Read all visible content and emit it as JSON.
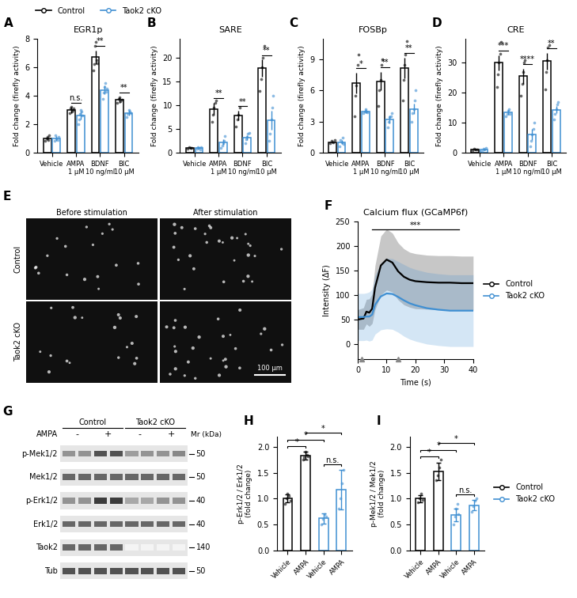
{
  "chart_data": [
    {
      "panel": "A",
      "type": "bar",
      "title": "EGR1p",
      "y_label": "Fold change (firefly activity)",
      "categories": [
        "Vehicle",
        "AMPA\n1 μM",
        "BDNF\n10 ng/ml",
        "BIC\n10 μM"
      ],
      "ylim": [
        0,
        8
      ],
      "yticks": [
        0,
        2,
        4,
        6,
        8
      ],
      "legend": "upper left",
      "series": [
        {
          "name": "Control",
          "color": "#000000",
          "values": [
            1.0,
            3.0,
            6.7,
            3.7
          ],
          "errors": [
            0.1,
            0.2,
            0.5,
            0.2
          ],
          "points": [
            [
              0.8,
              1.0,
              1.1,
              0.9,
              1.2
            ],
            [
              2.8,
              3.1,
              3.2,
              2.9,
              3.0,
              3.1
            ],
            [
              5.8,
              6.2,
              7.5,
              7.8,
              6.5,
              6.3
            ],
            [
              3.5,
              3.8,
              3.9,
              3.6,
              3.7
            ]
          ]
        },
        {
          "name": "Taok2 cKO",
          "color": "#3f8fd2",
          "values": [
            1.0,
            2.6,
            4.4,
            2.8
          ],
          "errors": [
            0.15,
            0.3,
            0.3,
            0.2
          ],
          "points": [
            [
              0.8,
              1.2,
              1.0,
              0.9,
              1.1
            ],
            [
              2.0,
              2.3,
              2.7,
              3.0,
              2.9,
              2.6
            ],
            [
              3.8,
              4.2,
              4.6,
              4.9,
              4.3,
              4.5
            ],
            [
              2.5,
              2.7,
              3.0,
              2.9,
              2.8
            ]
          ]
        }
      ],
      "significance": [
        null,
        "n.s.",
        "**",
        "**"
      ]
    },
    {
      "panel": "B",
      "type": "bar",
      "title": "SARE",
      "y_label": "Fold change (firefly activity)",
      "categories": [
        "Vehicle",
        "AMPA\n1 μM",
        "BDNF\n10 ng/ml",
        "BIC\n10 μM"
      ],
      "ylim": [
        0,
        24
      ],
      "yticks": [
        0,
        5,
        10,
        15,
        20
      ],
      "series": [
        {
          "name": "Control",
          "color": "#000000",
          "values": [
            1.0,
            9.2,
            7.8,
            17.8
          ],
          "errors": [
            0.2,
            1.3,
            1.0,
            1.8
          ],
          "points": [
            [
              0.8,
              1.2,
              1.0,
              0.9
            ],
            [
              6.5,
              8.0,
              9.5,
              10.5,
              11.0
            ],
            [
              5.5,
              7.0,
              8.0,
              9.5
            ],
            [
              13.0,
              15.5,
              18.0,
              20.0,
              22.5
            ]
          ]
        },
        {
          "name": "Taok2 cKO",
          "color": "#3f8fd2",
          "values": [
            1.0,
            2.2,
            3.2,
            6.8
          ],
          "errors": [
            0.2,
            0.6,
            0.5,
            2.0
          ],
          "points": [
            [
              0.8,
              1.2,
              1.0,
              0.7,
              1.1
            ],
            [
              1.0,
              1.5,
              2.0,
              2.5,
              3.5
            ],
            [
              2.0,
              2.8,
              3.3,
              4.0,
              4.2
            ],
            [
              2.5,
              4.0,
              7.0,
              9.5,
              12.0
            ]
          ]
        }
      ],
      "significance": [
        null,
        "**",
        "**",
        "**"
      ]
    },
    {
      "panel": "C",
      "type": "bar",
      "title": "FOSBp",
      "y_label": "Fold change (firefly activity)",
      "categories": [
        "Vehicle",
        "AMPA\n1 μM",
        "BDNF\n10 ng/ml",
        "BIC\n10 μM"
      ],
      "ylim": [
        0,
        11
      ],
      "yticks": [
        0,
        3,
        6,
        9
      ],
      "series": [
        {
          "name": "Control",
          "color": "#000000",
          "values": [
            1.0,
            6.7,
            6.9,
            8.2
          ],
          "errors": [
            0.1,
            1.0,
            0.9,
            1.0
          ],
          "points": [
            [
              0.9,
              1.1,
              1.0,
              1.2
            ],
            [
              3.5,
              5.5,
              6.5,
              8.5,
              9.5
            ],
            [
              4.5,
              6.0,
              7.0,
              8.5,
              9.0
            ],
            [
              5.0,
              7.0,
              8.5,
              9.5,
              10.8
            ]
          ]
        },
        {
          "name": "Taok2 cKO",
          "color": "#3f8fd2",
          "values": [
            1.0,
            4.0,
            3.2,
            4.2
          ],
          "errors": [
            0.2,
            0.2,
            0.4,
            0.5
          ],
          "points": [
            [
              0.6,
              1.2,
              1.0,
              1.4,
              0.8
            ],
            [
              3.8,
              4.0,
              4.2,
              4.0,
              3.9
            ],
            [
              2.4,
              3.0,
              3.4,
              3.5,
              3.8
            ],
            [
              3.0,
              3.8,
              4.2,
              5.0,
              6.0
            ]
          ]
        }
      ],
      "significance": [
        null,
        "*",
        "**",
        "**"
      ]
    },
    {
      "panel": "D",
      "type": "bar",
      "title": "CRE",
      "y_label": "Fold change (firefly activity)",
      "categories": [
        "Vehicle",
        "AMPA\n1 μM",
        "BDNF\n10 ng/ml",
        "BIC\n10 μM"
      ],
      "ylim": [
        0,
        38
      ],
      "yticks": [
        0,
        10,
        20,
        30
      ],
      "series": [
        {
          "name": "Control",
          "color": "#000000",
          "values": [
            1.0,
            30.0,
            25.5,
            30.5
          ],
          "errors": [
            0.2,
            2.5,
            2.5,
            2.8
          ],
          "points": [
            [
              0.8,
              1.2,
              1.0,
              0.9
            ],
            [
              22,
              26,
              30,
              33,
              37
            ],
            [
              19,
              23,
              27,
              30,
              31
            ],
            [
              21,
              27,
              31,
              35,
              36
            ]
          ]
        },
        {
          "name": "Taok2 cKO",
          "color": "#3f8fd2",
          "values": [
            1.0,
            13.5,
            6.0,
            14.3
          ],
          "errors": [
            0.2,
            0.8,
            1.8,
            1.2
          ],
          "points": [
            [
              0.5,
              1.2,
              1.0,
              1.5
            ],
            [
              12,
              13,
              14,
              14.5,
              13
            ],
            [
              2,
              4,
              6,
              8,
              10
            ],
            [
              11,
              13,
              14.5,
              16,
              17
            ]
          ]
        }
      ],
      "significance": [
        null,
        "***",
        "****",
        "**"
      ]
    },
    {
      "panel": "F",
      "type": "line",
      "title": "Calcium flux (GCaMP6f)",
      "x_label": "Time (s)",
      "y_label": "Intensity (ΔF)",
      "xlim": [
        0,
        40
      ],
      "xticks": [
        0,
        10,
        20,
        30,
        40
      ],
      "ylim": [
        -30,
        250
      ],
      "yticks": [
        0,
        50,
        100,
        150,
        200,
        250
      ],
      "legend": "center left",
      "stimulus_times": [
        1.5,
        14
      ],
      "significance": {
        "label": "***",
        "from": 5,
        "to": 35
      },
      "series": [
        {
          "name": "Control",
          "color": "#000000",
          "x": [
            0,
            2,
            3,
            4,
            5,
            6,
            8,
            10,
            12,
            14,
            16,
            18,
            20,
            24,
            28,
            32,
            36,
            40
          ],
          "values": [
            50,
            52,
            66,
            64,
            72,
            115,
            160,
            172,
            166,
            148,
            137,
            131,
            128,
            126,
            125,
            125,
            124,
            124
          ],
          "sd": [
            20,
            22,
            25,
            28,
            30,
            45,
            60,
            62,
            60,
            58,
            57,
            56,
            56,
            55,
            55,
            55,
            55,
            55
          ]
        },
        {
          "name": "Taok2 cKO",
          "color": "#3f8fd2",
          "x": [
            0,
            2,
            3,
            4,
            5,
            6,
            8,
            10,
            12,
            14,
            16,
            18,
            20,
            24,
            28,
            32,
            36,
            40
          ],
          "values": [
            55,
            55,
            56,
            56,
            60,
            80,
            97,
            103,
            102,
            96,
            89,
            83,
            79,
            73,
            70,
            68,
            68,
            68
          ],
          "sd": [
            48,
            48,
            48,
            50,
            52,
            60,
            68,
            72,
            72,
            72,
            73,
            73,
            73,
            73,
            73,
            73,
            73,
            73
          ]
        }
      ]
    },
    {
      "panel": "H",
      "type": "bar",
      "y_label": "p-Erk1/2 / Erk1/2\n(fold change)",
      "categories": [
        "Vehicle",
        "AMPA",
        "Vehicle",
        "AMPA"
      ],
      "ylim": [
        0,
        2.2
      ],
      "yticks": [
        {
          "value": 0,
          "label": "0.0"
        },
        0.5,
        {
          "value": 1,
          "label": "1.0"
        },
        1.5,
        {
          "value": 2,
          "label": "2.0"
        }
      ],
      "series": [
        {
          "name": "Control",
          "color": "#000000",
          "values": [
            1.0,
            1.83,
            null,
            null
          ],
          "errors": [
            0.08,
            0.07,
            null,
            null
          ],
          "points": [
            [
              0.9,
              1.0,
              1.1,
              1.05,
              0.95
            ],
            [
              1.75,
              1.8,
              1.9,
              1.85,
              1.82
            ],
            null,
            null
          ]
        },
        {
          "name": "Taok2 cKO",
          "color": "#3f8fd2",
          "values": [
            null,
            null,
            0.62,
            1.17
          ],
          "errors": [
            null,
            null,
            0.1,
            0.38
          ],
          "points": [
            null,
            null,
            [
              0.5,
              0.6,
              0.7,
              0.65
            ],
            [
              0.8,
              1.0,
              1.3,
              1.55
            ]
          ]
        }
      ],
      "brackets": [
        {
          "from": 0,
          "to": 1,
          "label": "*"
        },
        {
          "from": 0,
          "to": 2,
          "label": "*"
        },
        {
          "from": 1,
          "to": 3,
          "label": "*"
        },
        {
          "from": 2,
          "to": 3,
          "label": "n.s."
        }
      ]
    },
    {
      "panel": "I",
      "type": "bar",
      "y_label": "p-Mek1/2 / Mek1/2\n(fold change)",
      "categories": [
        "Vehicle",
        "AMPA",
        "Vehicle",
        "AMPA"
      ],
      "legend": "center left",
      "ylim": [
        0,
        2.2
      ],
      "yticks": [
        {
          "value": 0,
          "label": "0.0"
        },
        0.5,
        {
          "value": 1,
          "label": "1.0"
        },
        1.5,
        {
          "value": 2,
          "label": "2.0"
        }
      ],
      "series": [
        {
          "name": "Control",
          "color": "#000000",
          "values": [
            1.0,
            1.53,
            null,
            null
          ],
          "errors": [
            0.07,
            0.17,
            null,
            null
          ],
          "points": [
            [
              0.92,
              1.0,
              1.1,
              0.98
            ],
            [
              1.35,
              1.45,
              1.6,
              1.75
            ],
            null,
            null
          ]
        },
        {
          "name": "Taok2 cKO",
          "color": "#3f8fd2",
          "values": [
            null,
            null,
            0.68,
            0.87
          ],
          "errors": [
            null,
            null,
            0.12,
            0.1
          ],
          "points": [
            null,
            null,
            [
              0.5,
              0.65,
              0.8,
              0.9,
              0.7
            ],
            [
              0.75,
              0.85,
              0.95,
              1.0
            ]
          ]
        }
      ],
      "brackets": [
        {
          "from": 0,
          "to": 1,
          "label": "*"
        },
        {
          "from": 0,
          "to": 2,
          "label": "*"
        },
        {
          "from": 1,
          "to": 3,
          "label": "*"
        },
        {
          "from": 2,
          "to": 3,
          "label": "n.s."
        }
      ]
    }
  ],
  "image_panel": {
    "panel": "E",
    "columns": [
      "Before stimulation",
      "After stimulation"
    ],
    "rows": [
      "Control",
      "Taok2 cKO"
    ],
    "scale_bar": "100 μm"
  },
  "blot_panel": {
    "panel": "G",
    "groups": [
      {
        "label": "Control",
        "lanes": 4
      },
      {
        "label": "Taok2 cKO",
        "lanes": 4
      }
    ],
    "treatment": "AMPA",
    "treatment_labels": [
      "-",
      "+",
      "-",
      "+"
    ],
    "mass_header": "Mr (kDa)",
    "rows": [
      {
        "label": "p-Mek1/2",
        "mass": 50,
        "intensity": [
          0.5,
          0.5,
          0.8,
          0.8,
          0.45,
          0.5,
          0.5,
          0.55
        ]
      },
      {
        "label": "Mek1/2",
        "mass": 50,
        "intensity": [
          0.7,
          0.7,
          0.7,
          0.7,
          0.7,
          0.7,
          0.7,
          0.7
        ]
      },
      {
        "label": "p-Erk1/2",
        "mass": 40,
        "intensity": [
          0.5,
          0.5,
          0.9,
          0.9,
          0.4,
          0.4,
          0.5,
          0.5
        ]
      },
      {
        "label": "Erk1/2",
        "mass": 40,
        "intensity": [
          0.7,
          0.7,
          0.7,
          0.7,
          0.7,
          0.7,
          0.7,
          0.7
        ]
      },
      {
        "label": "Taok2",
        "mass": 140,
        "intensity": [
          0.7,
          0.7,
          0.7,
          0.7,
          0.05,
          0.05,
          0.05,
          0.05
        ]
      },
      {
        "label": "Tub",
        "mass": 50,
        "intensity": [
          0.8,
          0.8,
          0.8,
          0.8,
          0.8,
          0.8,
          0.8,
          0.8
        ]
      }
    ]
  }
}
